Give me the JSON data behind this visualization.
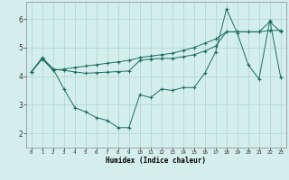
{
  "xlabel": "Humidex (Indice chaleur)",
  "bg_color": "#d4eeeb",
  "line_color": "#1a6e62",
  "grid_color": "#aed4cf",
  "xlim": [
    -0.5,
    23.5
  ],
  "ylim": [
    1.5,
    6.6
  ],
  "yticks": [
    2,
    3,
    4,
    5,
    6
  ],
  "xticks": [
    0,
    1,
    2,
    3,
    4,
    5,
    6,
    7,
    8,
    9,
    10,
    11,
    12,
    13,
    14,
    15,
    16,
    17,
    18,
    19,
    20,
    21,
    22,
    23
  ],
  "line1_y": [
    4.15,
    4.65,
    4.25,
    3.55,
    2.9,
    2.75,
    2.55,
    2.45,
    2.2,
    2.2,
    3.35,
    3.25,
    3.55,
    3.5,
    3.6,
    3.6,
    4.1,
    4.85,
    6.35,
    5.5,
    4.4,
    3.9,
    5.95,
    3.95
  ],
  "line2_y": [
    4.15,
    4.6,
    4.2,
    4.25,
    4.3,
    4.35,
    4.4,
    4.45,
    4.5,
    4.55,
    4.65,
    4.7,
    4.75,
    4.8,
    4.9,
    5.0,
    5.15,
    5.3,
    5.55,
    5.55,
    5.55,
    5.55,
    5.6,
    5.6
  ],
  "line3_y": [
    4.15,
    4.62,
    4.25,
    4.2,
    4.15,
    4.1,
    4.12,
    4.14,
    4.16,
    4.18,
    4.55,
    4.6,
    4.62,
    4.62,
    4.68,
    4.75,
    4.88,
    5.05,
    5.55,
    5.55,
    5.55,
    5.55,
    5.9,
    5.55
  ]
}
